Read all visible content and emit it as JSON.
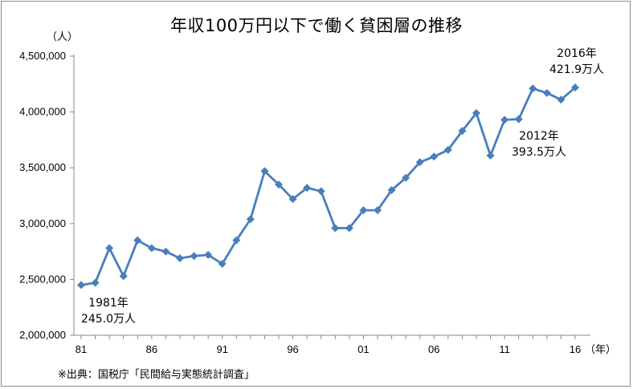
{
  "chart_data": {
    "type": "line",
    "title": "年収100万円以下で働く貧困層の推移",
    "ylabel": "（人）",
    "xlabel": "（年）",
    "ylim": [
      2000000,
      4500000
    ],
    "yticks": [
      "2,000,000",
      "2,500,000",
      "3,000,000",
      "3,500,000",
      "4,000,000",
      "4,500,000"
    ],
    "ytick_values": [
      2000000,
      2500000,
      3000000,
      3500000,
      4000000,
      4500000
    ],
    "xticks": [
      "81",
      "86",
      "91",
      "96",
      "01",
      "06",
      "11",
      "16"
    ],
    "xtick_years": [
      1981,
      1986,
      1991,
      1996,
      2001,
      2006,
      2011,
      2016
    ],
    "xlim": [
      1981,
      2016
    ],
    "x": [
      1981,
      1982,
      1983,
      1984,
      1985,
      1986,
      1987,
      1988,
      1989,
      1990,
      1991,
      1992,
      1993,
      1994,
      1995,
      1996,
      1997,
      1998,
      1999,
      2000,
      2001,
      2002,
      2003,
      2004,
      2005,
      2006,
      2007,
      2008,
      2009,
      2010,
      2011,
      2012,
      2013,
      2014,
      2015,
      2016
    ],
    "values": [
      2450000,
      2470000,
      2780000,
      2530000,
      2850000,
      2780000,
      2750000,
      2690000,
      2710000,
      2720000,
      2640000,
      2850000,
      3040000,
      3470000,
      3350000,
      3220000,
      3320000,
      3290000,
      2960000,
      2960000,
      3120000,
      3120000,
      3300000,
      3410000,
      3550000,
      3600000,
      3660000,
      3830000,
      3990000,
      3610000,
      3930000,
      3935000,
      4210000,
      4170000,
      4110000,
      4219000
    ],
    "color": "#4a7ebb",
    "grid": false,
    "annotations": [
      {
        "line1": "1981年",
        "line2": "245.0万人",
        "year": 1981
      },
      {
        "line1": "2012年",
        "line2": "393.5万人",
        "year": 2012
      },
      {
        "line1": "2016年",
        "line2": "421.9万人",
        "year": 2016
      }
    ],
    "source": "※出典：国税庁「民間給与実態統計調査」"
  }
}
